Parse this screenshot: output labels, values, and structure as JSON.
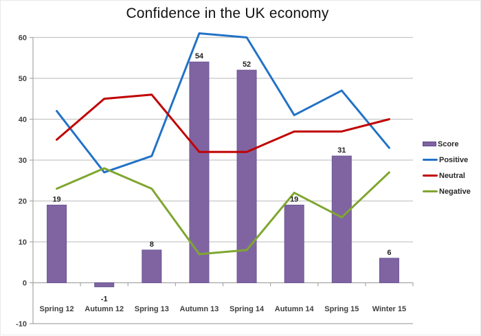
{
  "chart_data": {
    "type": "combo",
    "title": "Confidence in the UK economy",
    "categories": [
      "Spring 12",
      "Autumn 12",
      "Spring 13",
      "Autumn 13",
      "Spring 14",
      "Autumn 14",
      "Spring 15",
      "Winter 15"
    ],
    "series": [
      {
        "name": "Score",
        "type": "bar",
        "color": "#8064A2",
        "border_color": "#6a5693",
        "values": [
          19,
          -1,
          8,
          54,
          52,
          19,
          31,
          6
        ],
        "data_labels": [
          "19",
          "-1",
          "8",
          "54",
          "52",
          "19",
          "31",
          "6"
        ]
      },
      {
        "name": "Positive",
        "type": "line",
        "color": "#2272C6",
        "values": [
          42,
          27,
          31,
          61,
          60,
          41,
          47,
          33
        ]
      },
      {
        "name": "Neutral",
        "type": "line",
        "color": "#C00000",
        "values": [
          35,
          45,
          46,
          32,
          32,
          37,
          37,
          40
        ]
      },
      {
        "name": "Negative",
        "type": "line",
        "color": "#7FA62F",
        "values": [
          23,
          28,
          23,
          7,
          8,
          22,
          16,
          27
        ]
      }
    ],
    "ylim": [
      -10,
      60
    ],
    "ytick_step": 10,
    "ytick_labels": [
      "-10",
      "0",
      "10",
      "20",
      "30",
      "40",
      "50",
      "60"
    ],
    "grid": true,
    "gridline_color": "#c6c6c6",
    "axis_color": "#a6a6a6",
    "label_color": "#3f3f3f",
    "legend_position": "right"
  }
}
